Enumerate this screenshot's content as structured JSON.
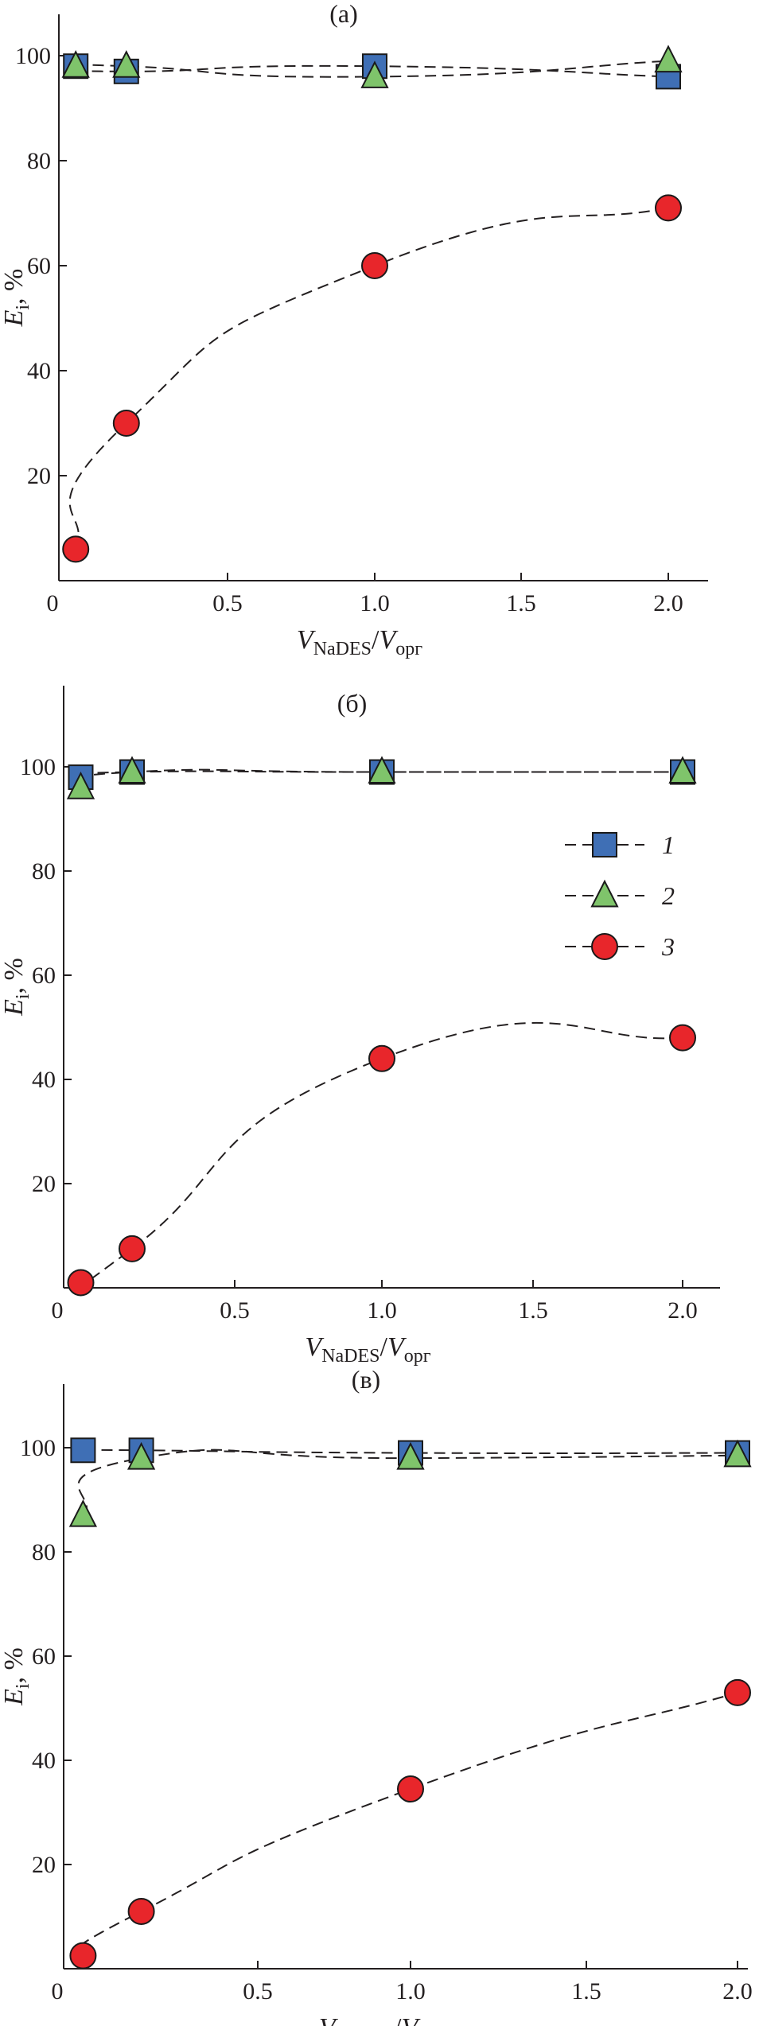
{
  "chart_data": [
    {
      "type": "line",
      "panel_label": "(а)",
      "x_label": {
        "main": "V",
        "sub": "NaDES",
        "sep": "/",
        "main2": "V",
        "sub2": "орг"
      },
      "y_label": {
        "main": "E",
        "sub": "i",
        "suffix": ", %"
      },
      "xlim": [
        0,
        2.0
      ],
      "ylim": [
        0,
        100
      ],
      "x_ticks": [
        "0",
        "0.5",
        "1.0",
        "1.5",
        "2.0"
      ],
      "x_tick_values": [
        0,
        0.5,
        1.0,
        1.5,
        2.0
      ],
      "y_ticks": [
        "20",
        "40",
        "60",
        "80",
        "100"
      ],
      "y_tick_values": [
        20,
        40,
        60,
        80,
        100
      ],
      "x": [
        0.05,
        0.2,
        1.0,
        2.0
      ],
      "series": [
        {
          "name": "1",
          "marker": "square",
          "color": "#3f6fb5",
          "values": [
            98,
            97,
            98,
            96
          ]
        },
        {
          "name": "2",
          "marker": "triangle",
          "color": "#7fc46b",
          "values": [
            98,
            98,
            96,
            99
          ]
        },
        {
          "name": "3",
          "marker": "circle",
          "color": "#e8262b",
          "values": [
            6,
            30,
            60,
            71
          ]
        }
      ]
    },
    {
      "type": "line",
      "panel_label": "(б)",
      "x_label": {
        "main": "V",
        "sub": "NaDES",
        "sep": "/",
        "main2": "V",
        "sub2": "орг"
      },
      "y_label": {
        "main": "E",
        "sub": "i",
        "suffix": ", %"
      },
      "xlim": [
        0,
        2.0
      ],
      "ylim": [
        0,
        100
      ],
      "x_ticks": [
        "0",
        "0.5",
        "1.0",
        "1.5",
        "2.0"
      ],
      "x_tick_values": [
        0,
        0.5,
        1.0,
        1.5,
        2.0
      ],
      "y_ticks": [
        "20",
        "40",
        "60",
        "80",
        "100"
      ],
      "y_tick_values": [
        20,
        40,
        60,
        80,
        100
      ],
      "x": [
        0.05,
        0.2,
        1.0,
        2.0
      ],
      "legend": [
        "1",
        "2",
        "3"
      ],
      "series": [
        {
          "name": "1",
          "marker": "square",
          "color": "#3f6fb5",
          "values": [
            98,
            99,
            99,
            99
          ]
        },
        {
          "name": "2",
          "marker": "triangle",
          "color": "#7fc46b",
          "values": [
            96,
            99,
            99,
            99
          ]
        },
        {
          "name": "3",
          "marker": "circle",
          "color": "#e8262b",
          "values": [
            1,
            7.5,
            44,
            48
          ]
        }
      ]
    },
    {
      "type": "line",
      "panel_label": "(в)",
      "x_label": {
        "main": "V",
        "sub": "NaDES",
        "sep": "/",
        "main2": "V",
        "sub2": "орг"
      },
      "y_label": {
        "main": "E",
        "sub": "i",
        "suffix": ", %"
      },
      "xlim": [
        0,
        2.0
      ],
      "ylim": [
        0,
        100
      ],
      "x_ticks": [
        "0",
        "0.5",
        "1.0",
        "1.5",
        "2.0"
      ],
      "x_tick_values": [
        0,
        0.5,
        1.0,
        1.5,
        2.0
      ],
      "y_ticks": [
        "20",
        "40",
        "60",
        "80",
        "100"
      ],
      "y_tick_values": [
        20,
        40,
        60,
        80,
        100
      ],
      "x": [
        0.05,
        0.2,
        1.0,
        2.0
      ],
      "series": [
        {
          "name": "1",
          "marker": "square",
          "color": "#3f6fb5",
          "values": [
            99.5,
            99.5,
            99,
            99
          ]
        },
        {
          "name": "2",
          "marker": "triangle",
          "color": "#7fc46b",
          "values": [
            87,
            98,
            98,
            98.5
          ]
        },
        {
          "name": "3",
          "marker": "circle",
          "color": "#e8262b",
          "values": [
            2.5,
            11,
            34.5,
            53
          ]
        }
      ]
    }
  ]
}
